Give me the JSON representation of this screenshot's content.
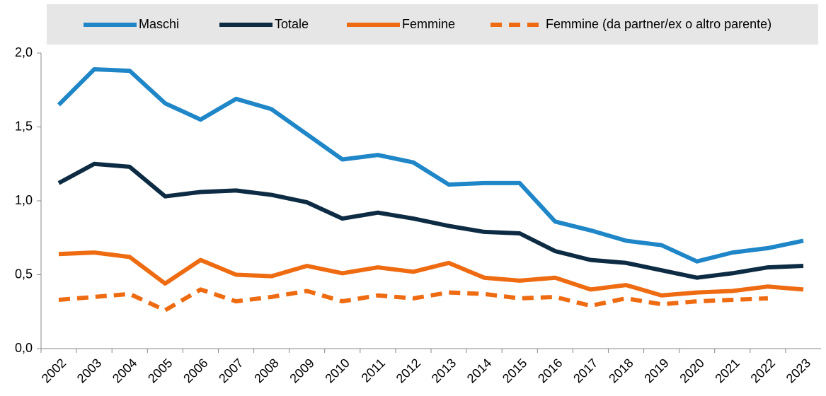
{
  "chart_data": {
    "type": "line",
    "categories": [
      "2002",
      "2003",
      "2004",
      "2005",
      "2006",
      "2007",
      "2008",
      "2009",
      "2010",
      "2011",
      "2012",
      "2013",
      "2014",
      "2015",
      "2016",
      "2017",
      "2018",
      "2019",
      "2020",
      "2021",
      "2022",
      "2023"
    ],
    "series": [
      {
        "name": "Maschi",
        "color": "#1f86c8",
        "dash": false,
        "values": [
          1.65,
          1.89,
          1.88,
          1.66,
          1.55,
          1.69,
          1.62,
          1.45,
          1.28,
          1.31,
          1.26,
          1.11,
          1.12,
          1.12,
          0.86,
          0.8,
          0.73,
          0.7,
          0.59,
          0.65,
          0.68,
          0.73
        ]
      },
      {
        "name": "Totale",
        "color": "#0d2c44",
        "dash": false,
        "values": [
          1.12,
          1.25,
          1.23,
          1.03,
          1.06,
          1.07,
          1.04,
          0.99,
          0.88,
          0.92,
          0.88,
          0.83,
          0.79,
          0.78,
          0.66,
          0.6,
          0.58,
          0.53,
          0.48,
          0.51,
          0.55,
          0.56
        ]
      },
      {
        "name": "Femmine",
        "color": "#ee6b11",
        "dash": false,
        "values": [
          0.64,
          0.65,
          0.62,
          0.44,
          0.6,
          0.5,
          0.49,
          0.56,
          0.51,
          0.55,
          0.52,
          0.58,
          0.48,
          0.46,
          0.48,
          0.4,
          0.43,
          0.36,
          0.38,
          0.39,
          0.42,
          0.4
        ]
      },
      {
        "name": "Femmine (da partner/ex o altro parente)",
        "color": "#ee6b11",
        "dash": true,
        "values": [
          0.33,
          0.35,
          0.37,
          0.26,
          0.4,
          0.32,
          0.35,
          0.39,
          0.32,
          0.36,
          0.34,
          0.38,
          0.37,
          0.34,
          0.35,
          0.29,
          0.34,
          0.3,
          0.32,
          0.33,
          0.34,
          null
        ]
      }
    ],
    "ylim": [
      0,
      2
    ],
    "yticks": [
      {
        "value": 0,
        "label": "0,0"
      },
      {
        "value": 0.5,
        "label": "0,5"
      },
      {
        "value": 1,
        "label": "1,0"
      },
      {
        "value": 1.5,
        "label": "1,5"
      },
      {
        "value": 2,
        "label": "2,0"
      }
    ],
    "grid": false,
    "legend": "top"
  }
}
